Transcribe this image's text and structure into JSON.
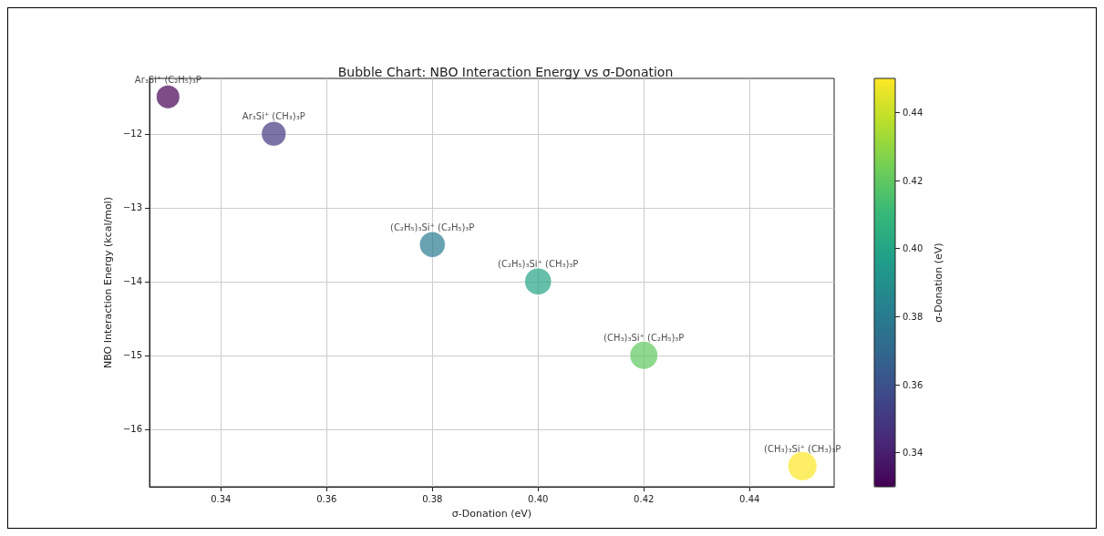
{
  "chart_data": {
    "type": "bubble",
    "title": "Bubble Chart: NBO Interaction Energy vs σ-Donation",
    "xlabel": "σ-Donation (eV)",
    "ylabel": "NBO Interaction Energy (kcal/mol)",
    "clabel": "σ-Donation (eV)",
    "x": [
      0.33,
      0.35,
      0.38,
      0.4,
      0.42,
      0.45
    ],
    "values": [
      -11.5,
      -12,
      -13.5,
      -14,
      -15,
      -16.5
    ],
    "sizes": [
      0.65,
      0.72,
      0.78,
      0.85,
      0.92,
      1
    ],
    "cvalues": [
      0.33,
      0.35,
      0.38,
      0.4,
      0.42,
      0.45
    ],
    "clim": [
      0.33,
      0.45
    ],
    "cticks": [
      0.34,
      0.36,
      0.38,
      {
        "value": 0.4,
        "label": "0.40"
      },
      0.42,
      0.44
    ],
    "xlim": [
      0.3265,
      0.456
    ],
    "xticks": [
      0.34,
      0.36,
      0.38,
      {
        "value": 0.4,
        "label": "0.40"
      },
      0.42,
      0.44
    ],
    "ylim": [
      -16.78,
      -11.25
    ],
    "yticks": [
      -16,
      -15,
      -14,
      -13,
      -12
    ],
    "grid": true,
    "annotations": [
      {
        "text": "Ar₃Si⁺ (C₂H₅)₃P",
        "x": 0.33,
        "y": -11.5
      },
      {
        "text": "Ar₃Si⁺ (CH₃)₃P",
        "x": 0.35,
        "y": -12
      },
      {
        "text": "(C₂H₅)₃Si⁺ (C₂H₅)₃P",
        "x": 0.38,
        "y": -13.5
      },
      {
        "text": "(C₂H₅)₃Si⁺ (CH₃)₃P",
        "x": 0.4,
        "y": -14
      },
      {
        "text": "(CH₃)₃Si⁺ (C₂H₅)₃P",
        "x": 0.42,
        "y": -15
      },
      {
        "text": "(CH₃)₃Si⁺ (CH₃)₃P",
        "x": 0.45,
        "y": -16.5
      }
    ]
  }
}
